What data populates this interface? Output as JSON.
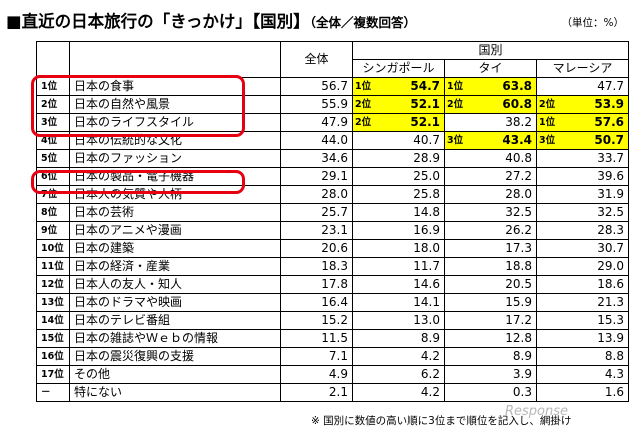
{
  "header": {
    "title": "■直近の日本旅行の「きっかけ」【国別】",
    "subtitle": "（全体／複数回答）",
    "unit": "（単位：%）"
  },
  "table": {
    "col_overall": "全体",
    "col_group": "国別",
    "countries": [
      "シンガポール",
      "タイ",
      "マレーシア"
    ],
    "rows": [
      {
        "pos": "1位",
        "item": "日本の食事",
        "overall": "56.7",
        "sg": "54.7",
        "sg_rank": "1位",
        "th": "63.8",
        "th_rank": "1位",
        "my": "47.7",
        "my_rank": ""
      },
      {
        "pos": "2位",
        "item": "日本の自然や風景",
        "overall": "55.9",
        "sg": "52.1",
        "sg_rank": "2位",
        "th": "60.8",
        "th_rank": "2位",
        "my": "53.9",
        "my_rank": "2位"
      },
      {
        "pos": "3位",
        "item": "日本のライフスタイル",
        "overall": "47.9",
        "sg": "52.1",
        "sg_rank": "2位",
        "th": "38.2",
        "th_rank": "",
        "my": "57.6",
        "my_rank": "1位"
      },
      {
        "pos": "4位",
        "item": "日本の伝統的な文化",
        "overall": "44.0",
        "sg": "40.7",
        "sg_rank": "",
        "th": "43.4",
        "th_rank": "3位",
        "my": "50.7",
        "my_rank": "3位"
      },
      {
        "pos": "5位",
        "item": "日本のファッション",
        "overall": "34.6",
        "sg": "28.9",
        "sg_rank": "",
        "th": "40.8",
        "th_rank": "",
        "my": "33.7",
        "my_rank": ""
      },
      {
        "pos": "6位",
        "item": "日本の製品・電子機器",
        "overall": "29.1",
        "sg": "25.0",
        "sg_rank": "",
        "th": "27.2",
        "th_rank": "",
        "my": "39.6",
        "my_rank": ""
      },
      {
        "pos": "7位",
        "item": "日本人の気質や人柄",
        "overall": "28.0",
        "sg": "25.8",
        "sg_rank": "",
        "th": "28.0",
        "th_rank": "",
        "my": "31.9",
        "my_rank": ""
      },
      {
        "pos": "8位",
        "item": "日本の芸術",
        "overall": "25.7",
        "sg": "14.8",
        "sg_rank": "",
        "th": "32.5",
        "th_rank": "",
        "my": "32.5",
        "my_rank": ""
      },
      {
        "pos": "9位",
        "item": "日本のアニメや漫画",
        "overall": "23.1",
        "sg": "16.9",
        "sg_rank": "",
        "th": "26.2",
        "th_rank": "",
        "my": "28.3",
        "my_rank": ""
      },
      {
        "pos": "10位",
        "item": "日本の建築",
        "overall": "20.6",
        "sg": "18.0",
        "sg_rank": "",
        "th": "17.3",
        "th_rank": "",
        "my": "30.7",
        "my_rank": ""
      },
      {
        "pos": "11位",
        "item": "日本の経済・産業",
        "overall": "18.3",
        "sg": "11.7",
        "sg_rank": "",
        "th": "18.8",
        "th_rank": "",
        "my": "29.0",
        "my_rank": ""
      },
      {
        "pos": "12位",
        "item": "日本人の友人・知人",
        "overall": "17.8",
        "sg": "14.6",
        "sg_rank": "",
        "th": "20.5",
        "th_rank": "",
        "my": "18.6",
        "my_rank": ""
      },
      {
        "pos": "13位",
        "item": "日本のドラマや映画",
        "overall": "16.4",
        "sg": "14.1",
        "sg_rank": "",
        "th": "15.9",
        "th_rank": "",
        "my": "21.3",
        "my_rank": ""
      },
      {
        "pos": "14位",
        "item": "日本のテレビ番組",
        "overall": "15.2",
        "sg": "13.0",
        "sg_rank": "",
        "th": "17.2",
        "th_rank": "",
        "my": "15.3",
        "my_rank": ""
      },
      {
        "pos": "15位",
        "item": "日本の雑誌やＷｅｂの情報",
        "overall": "11.5",
        "sg": "8.9",
        "sg_rank": "",
        "th": "12.8",
        "th_rank": "",
        "my": "13.9",
        "my_rank": ""
      },
      {
        "pos": "16位",
        "item": "日本の震災復興の支援",
        "overall": "7.1",
        "sg": "4.2",
        "sg_rank": "",
        "th": "8.9",
        "th_rank": "",
        "my": "8.8",
        "my_rank": ""
      },
      {
        "pos": "17位",
        "item": "その他",
        "overall": "4.9",
        "sg": "6.2",
        "sg_rank": "",
        "th": "3.9",
        "th_rank": "",
        "my": "4.3",
        "my_rank": ""
      },
      {
        "pos": "－",
        "item": "特にない",
        "overall": "2.1",
        "sg": "4.2",
        "sg_rank": "",
        "th": "0.3",
        "th_rank": "",
        "my": "1.6",
        "my_rank": ""
      }
    ]
  },
  "highlight_color": "#e60012",
  "rank_fill_color": "#ffff00",
  "footnote": "※ 国別に数値の高い順に3位まで順位を記入し、網掛け",
  "watermark": "Response"
}
